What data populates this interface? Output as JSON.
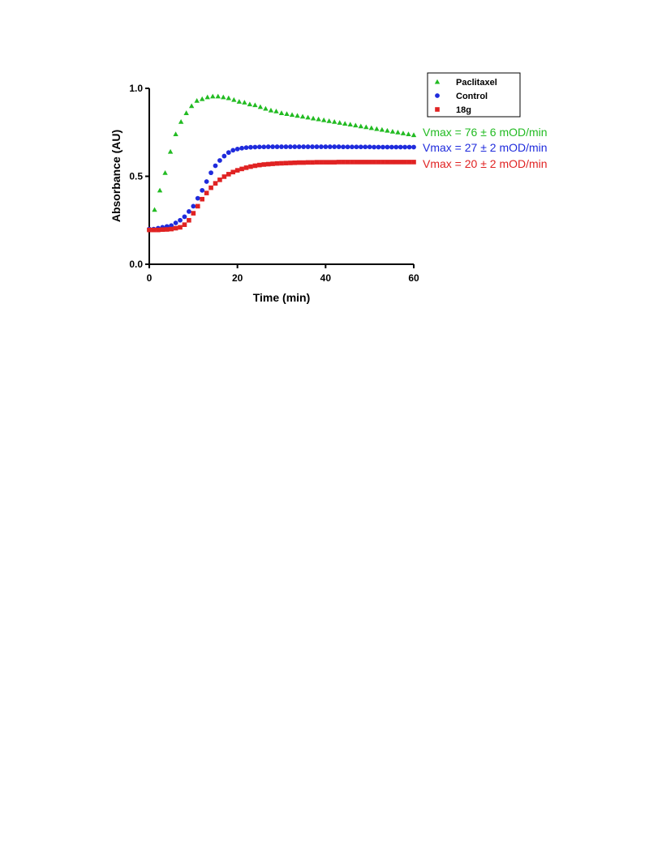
{
  "chart_data": {
    "type": "scatter",
    "title": "",
    "xlabel": "Time (min)",
    "ylabel": "Absorbance (AU)",
    "xlim": [
      0,
      60
    ],
    "ylim": [
      0,
      1.0
    ],
    "xticks": [
      0,
      20,
      40,
      60
    ],
    "yticks": [
      0.0,
      0.5,
      1.0
    ],
    "xtick_labels": [
      "0",
      "20",
      "40",
      "60"
    ],
    "ytick_labels": [
      "0.0",
      "0.5",
      "1.0"
    ],
    "grid": false,
    "legend_position": "top-right",
    "series": [
      {
        "name": "Paclitaxel",
        "color": "#22bb22",
        "marker": "triangle",
        "x": [
          0,
          1.2,
          2.4,
          3.6,
          4.8,
          6,
          7.2,
          8.4,
          9.6,
          10.8,
          12,
          13.2,
          14.4,
          15.6,
          16.8,
          18,
          19.2,
          20.4,
          21.6,
          22.8,
          24,
          25.2,
          26.4,
          27.6,
          28.8,
          30,
          31.2,
          32.4,
          33.6,
          34.8,
          36,
          37.2,
          38.4,
          39.6,
          40.8,
          42,
          43.2,
          44.4,
          45.6,
          46.8,
          48,
          49.2,
          50.4,
          51.6,
          52.8,
          54,
          55.2,
          56.4,
          57.6,
          58.8,
          60
        ],
        "y": [
          0.2,
          0.31,
          0.42,
          0.52,
          0.64,
          0.74,
          0.81,
          0.86,
          0.9,
          0.93,
          0.94,
          0.95,
          0.955,
          0.955,
          0.95,
          0.945,
          0.935,
          0.925,
          0.92,
          0.91,
          0.905,
          0.895,
          0.885,
          0.875,
          0.87,
          0.86,
          0.855,
          0.85,
          0.845,
          0.84,
          0.835,
          0.83,
          0.825,
          0.82,
          0.815,
          0.81,
          0.805,
          0.8,
          0.795,
          0.79,
          0.785,
          0.78,
          0.775,
          0.77,
          0.765,
          0.76,
          0.755,
          0.75,
          0.745,
          0.74,
          0.735
        ]
      },
      {
        "name": "Control",
        "color": "#1f2bdc",
        "marker": "circle",
        "x": [
          0,
          1,
          2,
          3,
          4,
          5,
          6,
          7,
          8,
          9,
          10,
          11,
          12,
          13,
          14,
          15,
          16,
          17,
          18,
          19,
          20,
          21,
          22,
          23,
          24,
          25,
          26,
          27,
          28,
          29,
          30,
          31,
          32,
          33,
          34,
          35,
          36,
          37,
          38,
          39,
          40,
          41,
          42,
          43,
          44,
          45,
          46,
          47,
          48,
          49,
          50,
          51,
          52,
          53,
          54,
          55,
          56,
          57,
          58,
          59,
          60
        ],
        "y": [
          0.2,
          0.2,
          0.205,
          0.21,
          0.215,
          0.22,
          0.235,
          0.25,
          0.27,
          0.3,
          0.33,
          0.375,
          0.42,
          0.47,
          0.52,
          0.56,
          0.59,
          0.615,
          0.635,
          0.648,
          0.655,
          0.66,
          0.663,
          0.665,
          0.666,
          0.667,
          0.667,
          0.668,
          0.668,
          0.668,
          0.668,
          0.668,
          0.668,
          0.668,
          0.668,
          0.668,
          0.668,
          0.668,
          0.668,
          0.668,
          0.668,
          0.668,
          0.668,
          0.668,
          0.667,
          0.667,
          0.667,
          0.667,
          0.667,
          0.667,
          0.667,
          0.666,
          0.666,
          0.666,
          0.666,
          0.666,
          0.666,
          0.666,
          0.666,
          0.666,
          0.666
        ]
      },
      {
        "name": "18g",
        "color": "#e02222",
        "marker": "square",
        "x": [
          0,
          1,
          2,
          3,
          4,
          5,
          6,
          7,
          8,
          9,
          10,
          11,
          12,
          13,
          14,
          15,
          16,
          17,
          18,
          19,
          20,
          21,
          22,
          23,
          24,
          25,
          26,
          27,
          28,
          29,
          30,
          31,
          32,
          33,
          34,
          35,
          36,
          37,
          38,
          39,
          40,
          41,
          42,
          43,
          44,
          45,
          46,
          47,
          48,
          49,
          50,
          51,
          52,
          53,
          54,
          55,
          56,
          57,
          58,
          59,
          60
        ],
        "y": [
          0.195,
          0.195,
          0.195,
          0.197,
          0.198,
          0.2,
          0.205,
          0.21,
          0.225,
          0.25,
          0.29,
          0.33,
          0.37,
          0.405,
          0.435,
          0.46,
          0.48,
          0.498,
          0.512,
          0.524,
          0.534,
          0.542,
          0.549,
          0.555,
          0.56,
          0.564,
          0.567,
          0.569,
          0.571,
          0.573,
          0.574,
          0.575,
          0.576,
          0.577,
          0.578,
          0.578,
          0.579,
          0.579,
          0.58,
          0.58,
          0.58,
          0.58,
          0.58,
          0.581,
          0.581,
          0.581,
          0.581,
          0.581,
          0.581,
          0.581,
          0.581,
          0.581,
          0.581,
          0.581,
          0.581,
          0.581,
          0.581,
          0.581,
          0.581,
          0.581,
          0.581
        ]
      }
    ],
    "annotations": [
      {
        "text": "Vmax = 76 ± 6 mOD/min",
        "color": "#22bb22"
      },
      {
        "text": "Vmax = 27 ± 2 mOD/min",
        "color": "#1f2bdc"
      },
      {
        "text": "Vmax = 20 ± 2 mOD/min",
        "color": "#e02222"
      }
    ]
  }
}
